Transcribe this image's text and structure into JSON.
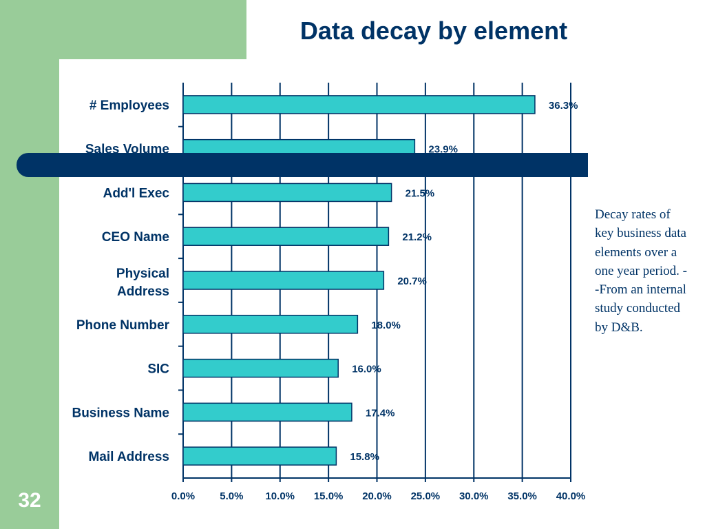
{
  "slide": {
    "title": "Data decay by element",
    "page_number": "32",
    "note": "Decay rates of key business data elements over a one year period. --From an internal study conducted by D&B."
  },
  "colors": {
    "bar": "#33cccc",
    "bar_edge": "#003366",
    "title": "#003366",
    "band": "#99cc99",
    "decoration_bar": "#003366"
  },
  "chart_data": {
    "type": "bar",
    "orientation": "horizontal",
    "title": "Data decay by element",
    "categories": [
      "# Employees",
      "Sales Volume",
      "Add'l Exec",
      "CEO Name",
      "Physical Address",
      "Phone Number",
      "SIC",
      "Business Name",
      "Mail Address"
    ],
    "values": [
      36.3,
      23.9,
      21.5,
      21.2,
      20.7,
      18.0,
      16.0,
      17.4,
      15.8
    ],
    "data_labels": [
      "36.3%",
      "23.9%",
      "21.5%",
      "21.2%",
      "20.7%",
      "18.0%",
      "16.0%",
      "17.4%",
      "15.8%"
    ],
    "x_ticks": [
      "0.0%",
      "5.0%",
      "10.0%",
      "15.0%",
      "20.0%",
      "25.0%",
      "30.0%",
      "35.0%",
      "40.0%"
    ],
    "xlim": [
      0,
      40
    ],
    "unit": "%",
    "grid": "vertical",
    "legend": "none"
  }
}
